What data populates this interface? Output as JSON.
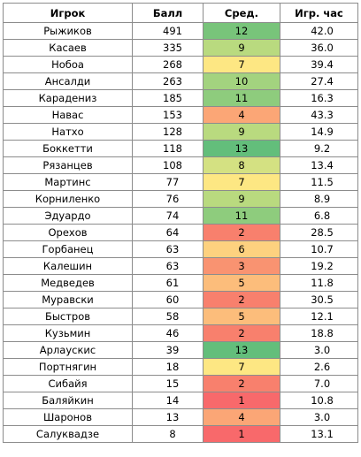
{
  "headers": [
    "Игрок",
    "Балл",
    "Сред.",
    "Игр. час"
  ],
  "rows": [
    {
      "name": "Рыжиков",
      "score": "491",
      "avg": "12",
      "hours": "42.0",
      "color": "#78c47a"
    },
    {
      "name": "Касаев",
      "score": "335",
      "avg": "9",
      "hours": "36.0",
      "color": "#b9da7f"
    },
    {
      "name": "Нобоа",
      "score": "268",
      "avg": "7",
      "hours": "39.4",
      "color": "#fde783"
    },
    {
      "name": "Ансалди",
      "score": "263",
      "avg": "10",
      "hours": "27.4",
      "color": "#a3d37f"
    },
    {
      "name": "Карадениз",
      "score": "185",
      "avg": "11",
      "hours": "16.3",
      "color": "#8ecc7d"
    },
    {
      "name": "Навас",
      "score": "153",
      "avg": "4",
      "hours": "43.3",
      "color": "#fba676"
    },
    {
      "name": "Натхо",
      "score": "128",
      "avg": "9",
      "hours": "14.9",
      "color": "#b9da7f"
    },
    {
      "name": "Боккетти",
      "score": "118",
      "avg": "13",
      "hours": "9.2",
      "color": "#63be7b"
    },
    {
      "name": "Рязанцев",
      "score": "108",
      "avg": "8",
      "hours": "13.4",
      "color": "#d4e182"
    },
    {
      "name": "Мартинс",
      "score": "77",
      "avg": "7",
      "hours": "11.5",
      "color": "#fde783"
    },
    {
      "name": "Корниленко",
      "score": "76",
      "avg": "9",
      "hours": "8.9",
      "color": "#b9da7f"
    },
    {
      "name": "Эдуардо",
      "score": "74",
      "avg": "11",
      "hours": "6.8",
      "color": "#8ecc7d"
    },
    {
      "name": "Орехов",
      "score": "64",
      "avg": "2",
      "hours": "28.5",
      "color": "#f8806d"
    },
    {
      "name": "Горбанец",
      "score": "63",
      "avg": "6",
      "hours": "10.7",
      "color": "#fdd17f"
    },
    {
      "name": "Калешин",
      "score": "63",
      "avg": "3",
      "hours": "19.2",
      "color": "#f99371"
    },
    {
      "name": "Медведев",
      "score": "61",
      "avg": "5",
      "hours": "11.8",
      "color": "#fcbd7b"
    },
    {
      "name": "Муравски",
      "score": "60",
      "avg": "2",
      "hours": "30.5",
      "color": "#f8806d"
    },
    {
      "name": "Быстров",
      "score": "58",
      "avg": "5",
      "hours": "12.1",
      "color": "#fcbd7b"
    },
    {
      "name": "Кузьмин",
      "score": "46",
      "avg": "2",
      "hours": "18.8",
      "color": "#f8806d"
    },
    {
      "name": "Арлаускис",
      "score": "39",
      "avg": "13",
      "hours": "3.0",
      "color": "#63be7b"
    },
    {
      "name": "Портнягин",
      "score": "18",
      "avg": "7",
      "hours": "2.6",
      "color": "#fde783"
    },
    {
      "name": "Сибайя",
      "score": "15",
      "avg": "2",
      "hours": "7.0",
      "color": "#f8806d"
    },
    {
      "name": "Баляйкин",
      "score": "14",
      "avg": "1",
      "hours": "10.8",
      "color": "#f8696b"
    },
    {
      "name": "Шаронов",
      "score": "13",
      "avg": "4",
      "hours": "3.0",
      "color": "#fba676"
    },
    {
      "name": "Салуквадзе",
      "score": "8",
      "avg": "1",
      "hours": "13.1",
      "color": "#f8696b"
    }
  ]
}
